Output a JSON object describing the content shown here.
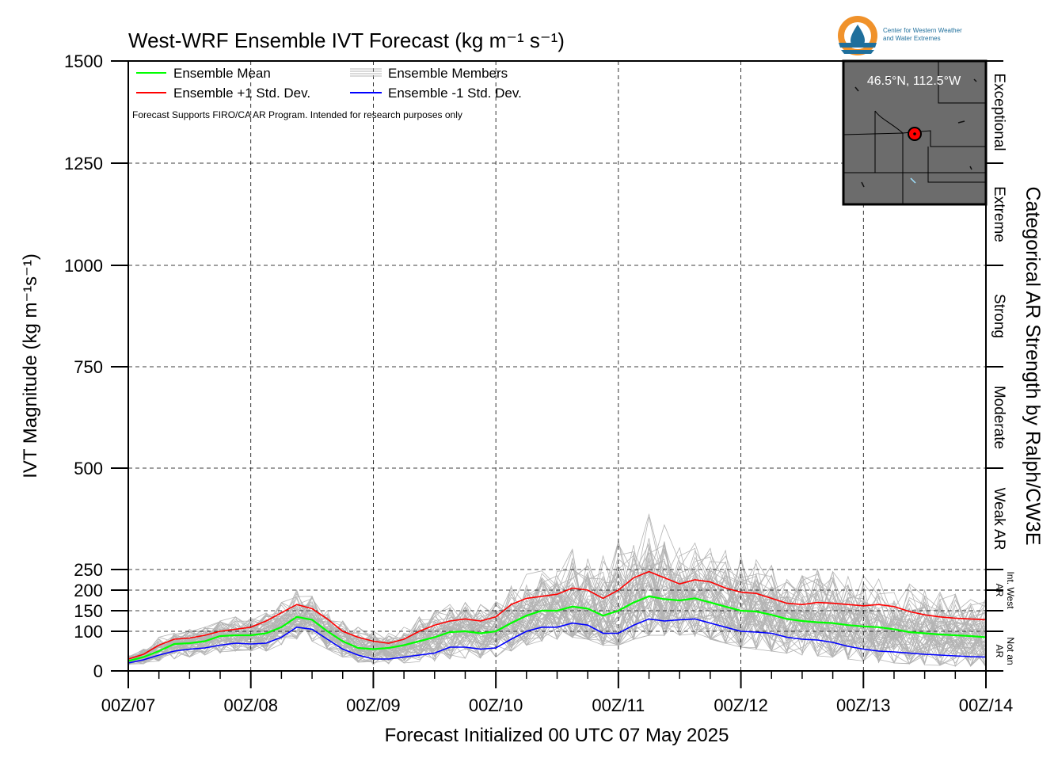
{
  "title": "West-WRF Ensemble IVT Forecast (kg m⁻¹ s⁻¹)",
  "logo": {
    "line1": "Center for Western Weather",
    "line2": "and Water Extremes",
    "accent": "#f0922b",
    "primary": "#1f6f9c"
  },
  "colors": {
    "mean": "#00ff00",
    "plus_std": "#ff0000",
    "minus_std": "#0000ff",
    "members": "#b4b4b4"
  },
  "chart_data": {
    "type": "line",
    "title": "West-WRF Ensemble IVT Forecast (kg m⁻¹ s⁻¹)",
    "xlabel": "Forecast Initialized 00 UTC 07 May 2025",
    "ylabel": "IVT Magnitude (kg m⁻¹s⁻¹)",
    "right_label": "Categorical AR Strength by Ralph/CW3E",
    "xlim": [
      0,
      168
    ],
    "ylim": [
      0,
      1500
    ],
    "x_unit": "forecast hour",
    "x_ticks": [
      0,
      24,
      48,
      72,
      96,
      120,
      144,
      168
    ],
    "x_tick_labels": [
      "00Z/07",
      "00Z/08",
      "00Z/09",
      "00Z/10",
      "00Z/11",
      "00Z/12",
      "00Z/13",
      "00Z/14"
    ],
    "y_ticks": [
      0,
      100,
      150,
      200,
      250,
      500,
      750,
      1000,
      1250,
      1500
    ],
    "y_tick_labels": [
      "0",
      "100",
      "150",
      "200",
      "250",
      "500",
      "750",
      "1000",
      "1250",
      "1500"
    ],
    "grid": true,
    "legend_position": "top-left",
    "legend": [
      {
        "label": "Ensemble Mean",
        "series": "mean"
      },
      {
        "label": "Ensemble +1 Std. Dev.",
        "series": "plus_std"
      },
      {
        "label": "Ensemble Members",
        "series": "members"
      },
      {
        "label": "Ensemble -1 Std. Dev.",
        "series": "minus_std"
      }
    ],
    "note": "Forecast Supports FIRO/CA AR Program. Intended for research purposes only",
    "inset": {
      "label": "46.5°N, 112.5°W",
      "position": "top-right"
    },
    "categories": [
      {
        "label": "Exceptional",
        "range": [
          1250,
          1500
        ],
        "size": "large"
      },
      {
        "label": "Extreme",
        "range": [
          1000,
          1250
        ],
        "size": "large"
      },
      {
        "label": "Strong",
        "range": [
          750,
          1000
        ],
        "size": "large"
      },
      {
        "label": "Moderate",
        "range": [
          500,
          750
        ],
        "size": "large"
      },
      {
        "label": "Weak AR",
        "range": [
          250,
          500
        ],
        "size": "large"
      },
      {
        "label": "Int. West AR",
        "range": [
          150,
          250
        ],
        "size": "small"
      },
      {
        "label": "Not an AR",
        "range": [
          0,
          100
        ],
        "size": "small"
      }
    ],
    "x": [
      0,
      3,
      6,
      9,
      12,
      15,
      18,
      21,
      24,
      27,
      30,
      33,
      36,
      39,
      42,
      45,
      48,
      51,
      54,
      57,
      60,
      63,
      66,
      69,
      72,
      75,
      78,
      81,
      84,
      87,
      90,
      93,
      96,
      99,
      102,
      105,
      108,
      111,
      114,
      117,
      120,
      123,
      126,
      129,
      132,
      135,
      138,
      141,
      144,
      147,
      150,
      153,
      156,
      159,
      162,
      165,
      168
    ],
    "series": [
      {
        "name": "Ensemble Mean",
        "key": "mean",
        "values": [
          25,
          35,
          50,
          68,
          70,
          75,
          88,
          90,
          90,
          95,
          110,
          135,
          128,
          100,
          75,
          58,
          55,
          58,
          65,
          75,
          85,
          98,
          100,
          95,
          100,
          120,
          138,
          150,
          150,
          160,
          155,
          138,
          150,
          170,
          185,
          178,
          175,
          180,
          170,
          160,
          150,
          148,
          140,
          130,
          125,
          122,
          120,
          115,
          112,
          110,
          105,
          98,
          95,
          92,
          90,
          88,
          85
        ]
      },
      {
        "name": "Ensemble +1 Std. Dev.",
        "key": "plus_std",
        "values": [
          30,
          42,
          65,
          80,
          83,
          90,
          100,
          105,
          110,
          125,
          145,
          165,
          155,
          130,
          100,
          85,
          75,
          70,
          80,
          100,
          115,
          125,
          130,
          125,
          135,
          165,
          180,
          185,
          190,
          205,
          200,
          180,
          200,
          230,
          245,
          230,
          215,
          225,
          220,
          205,
          195,
          192,
          180,
          168,
          165,
          170,
          168,
          165,
          162,
          165,
          160,
          148,
          140,
          135,
          132,
          130,
          128
        ]
      },
      {
        "name": "Ensemble -1 Std. Dev.",
        "key": "minus_std",
        "values": [
          20,
          28,
          40,
          50,
          55,
          58,
          65,
          70,
          68,
          70,
          85,
          110,
          105,
          80,
          55,
          40,
          30,
          30,
          35,
          40,
          45,
          60,
          60,
          55,
          58,
          80,
          100,
          110,
          110,
          120,
          115,
          95,
          95,
          115,
          130,
          125,
          128,
          130,
          120,
          110,
          100,
          98,
          95,
          85,
          80,
          78,
          72,
          62,
          55,
          50,
          48,
          45,
          42,
          40,
          38,
          36,
          35
        ]
      }
    ],
    "members_envelope": {
      "min": [
        15,
        18,
        25,
        30,
        35,
        40,
        45,
        50,
        50,
        50,
        60,
        80,
        75,
        55,
        35,
        22,
        15,
        18,
        20,
        22,
        25,
        30,
        32,
        32,
        35,
        50,
        65,
        75,
        80,
        85,
        80,
        65,
        65,
        80,
        90,
        90,
        90,
        88,
        80,
        70,
        60,
        55,
        50,
        45,
        40,
        38,
        35,
        30,
        25,
        22,
        20,
        18,
        15,
        14,
        12,
        12,
        10
      ],
      "max": [
        38,
        55,
        85,
        100,
        105,
        110,
        125,
        135,
        135,
        150,
        170,
        200,
        185,
        160,
        125,
        110,
        100,
        95,
        110,
        135,
        150,
        165,
        170,
        165,
        175,
        210,
        240,
        250,
        260,
        300,
        330,
        300,
        320,
        370,
        390,
        360,
        330,
        340,
        325,
        300,
        285,
        275,
        260,
        240,
        235,
        250,
        245,
        240,
        235,
        240,
        230,
        215,
        200,
        195,
        190,
        185,
        180
      ]
    }
  }
}
